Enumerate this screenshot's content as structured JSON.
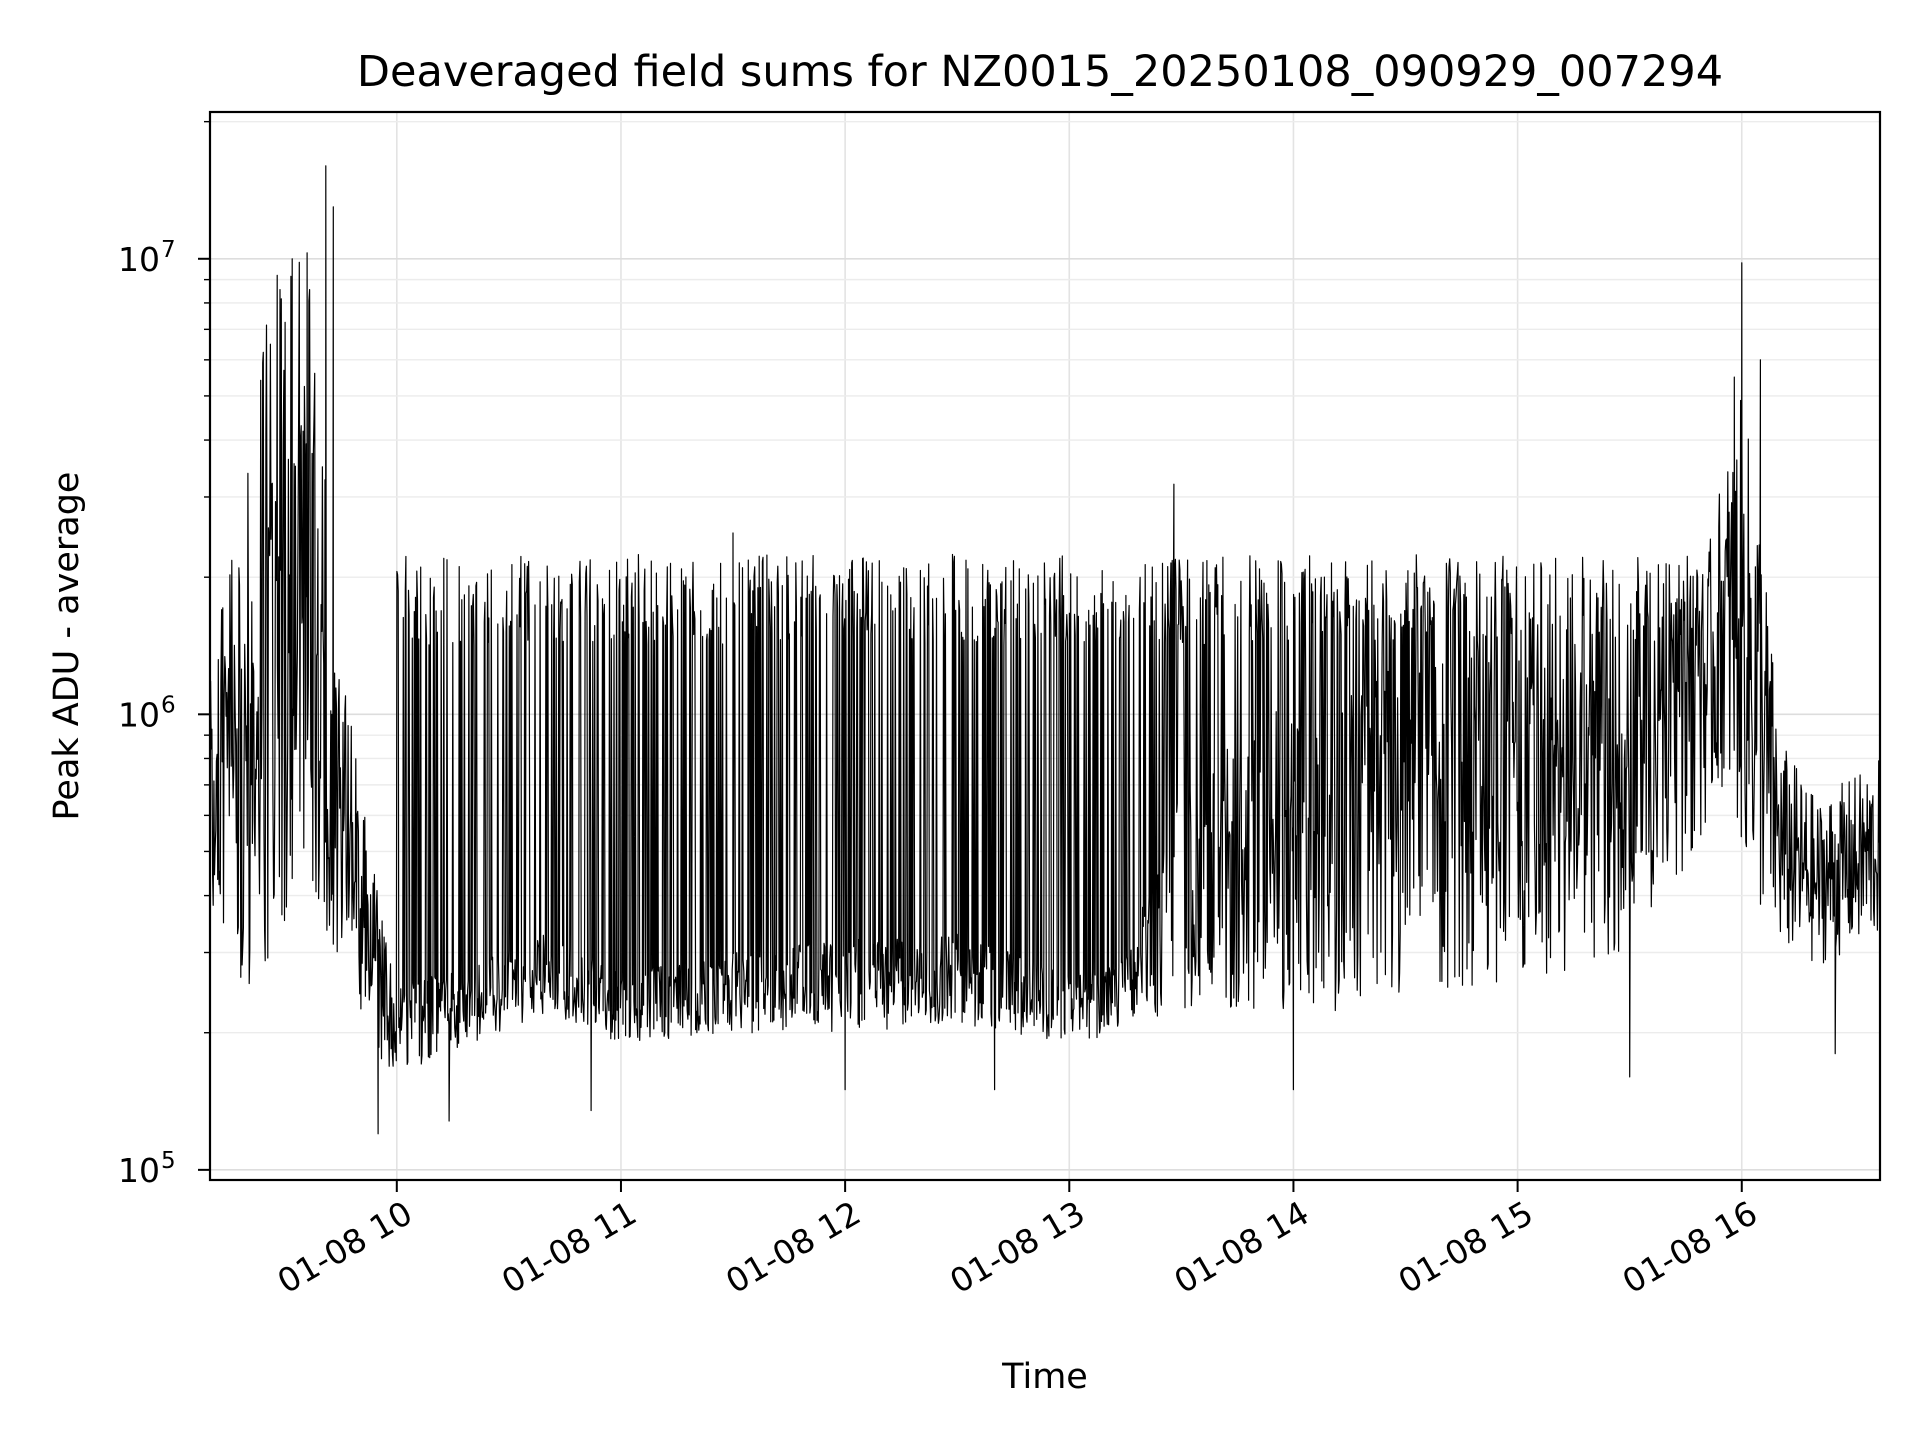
{
  "chart_data": {
    "type": "line",
    "title": "Deaveraged field sums for NZ0015_20250108_090929_007294",
    "xlabel": "Time",
    "ylabel": "Peak ADU - average",
    "x_scale": "time",
    "y_scale": "log",
    "xlim": [
      "2025-01-08T09:10:00",
      "2025-01-08T16:37:00"
    ],
    "ylim": [
      95000,
      21000000
    ],
    "x_ticks": [
      {
        "value": "2025-01-08T10:00:00",
        "label": "01-08 10"
      },
      {
        "value": "2025-01-08T11:00:00",
        "label": "01-08 11"
      },
      {
        "value": "2025-01-08T12:00:00",
        "label": "01-08 12"
      },
      {
        "value": "2025-01-08T13:00:00",
        "label": "01-08 13"
      },
      {
        "value": "2025-01-08T14:00:00",
        "label": "01-08 14"
      },
      {
        "value": "2025-01-08T15:00:00",
        "label": "01-08 15"
      },
      {
        "value": "2025-01-08T16:00:00",
        "label": "01-08 16"
      }
    ],
    "y_ticks": [
      {
        "value": 100000,
        "base": "10",
        "exp": "5"
      },
      {
        "value": 1000000,
        "base": "10",
        "exp": "6"
      },
      {
        "value": 10000000,
        "base": "10",
        "exp": "7"
      }
    ],
    "grid": true,
    "line_color": "#000000",
    "envelope": [
      {
        "t": "2025-01-08T09:10:00",
        "low": 380000,
        "high": 1500000
      },
      {
        "t": "2025-01-08T09:20:00",
        "low": 230000,
        "high": 3500000
      },
      {
        "t": "2025-01-08T09:25:00",
        "low": 260000,
        "high": 8000000
      },
      {
        "t": "2025-01-08T09:30:00",
        "low": 300000,
        "high": 10000000
      },
      {
        "t": "2025-01-08T09:36:00",
        "low": 450000,
        "high": 10000000
      },
      {
        "t": "2025-01-08T09:40:00",
        "low": 300000,
        "high": 4000000
      },
      {
        "t": "2025-01-08T09:45:00",
        "low": 280000,
        "high": 1400000
      },
      {
        "t": "2025-01-08T09:50:00",
        "low": 230000,
        "high": 700000
      },
      {
        "t": "2025-01-08T09:55:00",
        "low": 170000,
        "high": 400000
      },
      {
        "t": "2025-01-08T10:00:00",
        "low": 160000,
        "high": 260000
      },
      {
        "t": "2025-01-08T10:20:00",
        "low": 190000,
        "high": 280000
      },
      {
        "t": "2025-01-08T10:40:00",
        "low": 220000,
        "high": 330000
      },
      {
        "t": "2025-01-08T11:00:00",
        "low": 190000,
        "high": 270000
      },
      {
        "t": "2025-01-08T11:30:00",
        "low": 200000,
        "high": 300000
      },
      {
        "t": "2025-01-08T12:00:00",
        "low": 200000,
        "high": 320000
      },
      {
        "t": "2025-01-08T12:30:00",
        "low": 210000,
        "high": 330000
      },
      {
        "t": "2025-01-08T13:00:00",
        "low": 190000,
        "high": 270000
      },
      {
        "t": "2025-01-08T13:15:00",
        "low": 200000,
        "high": 290000
      },
      {
        "t": "2025-01-08T13:30:00",
        "low": 220000,
        "high": 700000
      },
      {
        "t": "2025-01-08T14:00:00",
        "low": 220000,
        "high": 1100000
      },
      {
        "t": "2025-01-08T14:30:00",
        "low": 230000,
        "high": 1300000
      },
      {
        "t": "2025-01-08T15:00:00",
        "low": 250000,
        "high": 1500000
      },
      {
        "t": "2025-01-08T15:30:00",
        "low": 300000,
        "high": 1100000
      },
      {
        "t": "2025-01-08T15:45:00",
        "low": 450000,
        "high": 1200000
      },
      {
        "t": "2025-01-08T15:55:00",
        "low": 700000,
        "high": 3500000
      },
      {
        "t": "2025-01-08T16:00:00",
        "low": 500000,
        "high": 5000000
      },
      {
        "t": "2025-01-08T16:05:00",
        "low": 350000,
        "high": 3000000
      },
      {
        "t": "2025-01-08T16:10:00",
        "low": 300000,
        "high": 900000
      },
      {
        "t": "2025-01-08T16:20:00",
        "low": 280000,
        "high": 650000
      },
      {
        "t": "2025-01-08T16:37:00",
        "low": 320000,
        "high": 800000
      }
    ],
    "spike_band": {
      "start": "2025-01-08T10:00:00",
      "end": "2025-01-08T15:50:00",
      "peak_level": 2000000
    },
    "notable_peaks": [
      {
        "t": "2025-01-08T09:41:00",
        "y": 16000000
      },
      {
        "t": "2025-01-08T09:43:00",
        "y": 13000000
      },
      {
        "t": "2025-01-08T09:36:00",
        "y": 10300000
      },
      {
        "t": "2025-01-08T09:32:00",
        "y": 10000000
      },
      {
        "t": "2025-01-08T09:28:00",
        "y": 9200000
      },
      {
        "t": "2025-01-08T11:30:00",
        "y": 2500000
      },
      {
        "t": "2025-01-08T13:28:00",
        "y": 3200000
      },
      {
        "t": "2025-01-08T16:00:00",
        "y": 9800000
      },
      {
        "t": "2025-01-08T15:58:00",
        "y": 5500000
      },
      {
        "t": "2025-01-08T16:05:00",
        "y": 6000000
      }
    ],
    "notable_troughs": [
      {
        "t": "2025-01-08T09:55:00",
        "y": 120000
      },
      {
        "t": "2025-01-08T10:14:00",
        "y": 128000
      },
      {
        "t": "2025-01-08T10:52:00",
        "y": 135000
      },
      {
        "t": "2025-01-08T12:00:00",
        "y": 150000
      },
      {
        "t": "2025-01-08T12:40:00",
        "y": 150000
      },
      {
        "t": "2025-01-08T14:00:00",
        "y": 150000
      },
      {
        "t": "2025-01-08T15:30:00",
        "y": 160000
      },
      {
        "t": "2025-01-08T16:25:00",
        "y": 180000
      }
    ]
  }
}
